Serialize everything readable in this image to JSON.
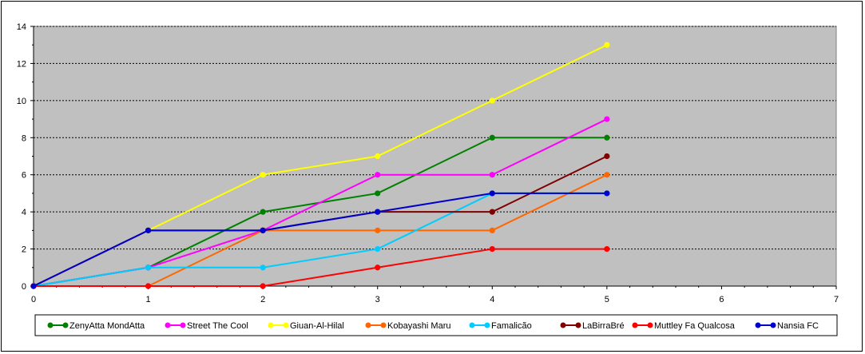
{
  "chart_data": {
    "type": "line",
    "title": "",
    "xlabel": "",
    "ylabel": "",
    "xlim": [
      0,
      7
    ],
    "ylim": [
      0,
      14
    ],
    "x_ticks": [
      0,
      1,
      2,
      3,
      4,
      5,
      6,
      7
    ],
    "y_ticks": [
      0,
      2,
      4,
      6,
      8,
      10,
      12,
      14
    ],
    "grid": "horizontal dashed",
    "legend_position": "bottom",
    "plot_background": "#c0c0c0",
    "series": [
      {
        "name": "ZenyAtta MondAtta",
        "color": "#008000",
        "x": [
          0,
          1,
          2,
          3,
          4,
          5
        ],
        "values": [
          0,
          1,
          4,
          5,
          8,
          8
        ]
      },
      {
        "name": "Street The Cool",
        "color": "#ff00ff",
        "x": [
          0,
          1,
          2,
          3,
          4,
          5
        ],
        "values": [
          0,
          1,
          3,
          6,
          6,
          9
        ]
      },
      {
        "name": "Giuan-Al-Hilal",
        "color": "#ffff00",
        "x": [
          0,
          1,
          2,
          3,
          4,
          5
        ],
        "values": [
          0,
          3,
          6,
          7,
          10,
          13
        ]
      },
      {
        "name": "Kobayashi Maru",
        "color": "#ff6600",
        "x": [
          0,
          1,
          2,
          3,
          4,
          5
        ],
        "values": [
          0,
          0,
          3,
          3,
          3,
          6
        ]
      },
      {
        "name": "Famalicão",
        "color": "#00ccff",
        "x": [
          0,
          1,
          2,
          3,
          4,
          5
        ],
        "values": [
          0,
          1,
          1,
          2,
          5,
          5
        ]
      },
      {
        "name": "LaBirraBré",
        "color": "#800000",
        "x": [
          0,
          1,
          2,
          3,
          4,
          5
        ],
        "values": [
          0,
          3,
          3,
          4,
          4,
          7
        ]
      },
      {
        "name": "Muttley Fa Qualcosa",
        "color": "#ff0000",
        "x": [
          0,
          1,
          2,
          3,
          4,
          5
        ],
        "values": [
          0,
          0,
          0,
          1,
          2,
          2
        ]
      },
      {
        "name": "Nansia FC",
        "color": "#0000cc",
        "x": [
          0,
          1,
          2,
          3,
          4,
          5
        ],
        "values": [
          0,
          3,
          3,
          4,
          5,
          5
        ]
      }
    ]
  }
}
